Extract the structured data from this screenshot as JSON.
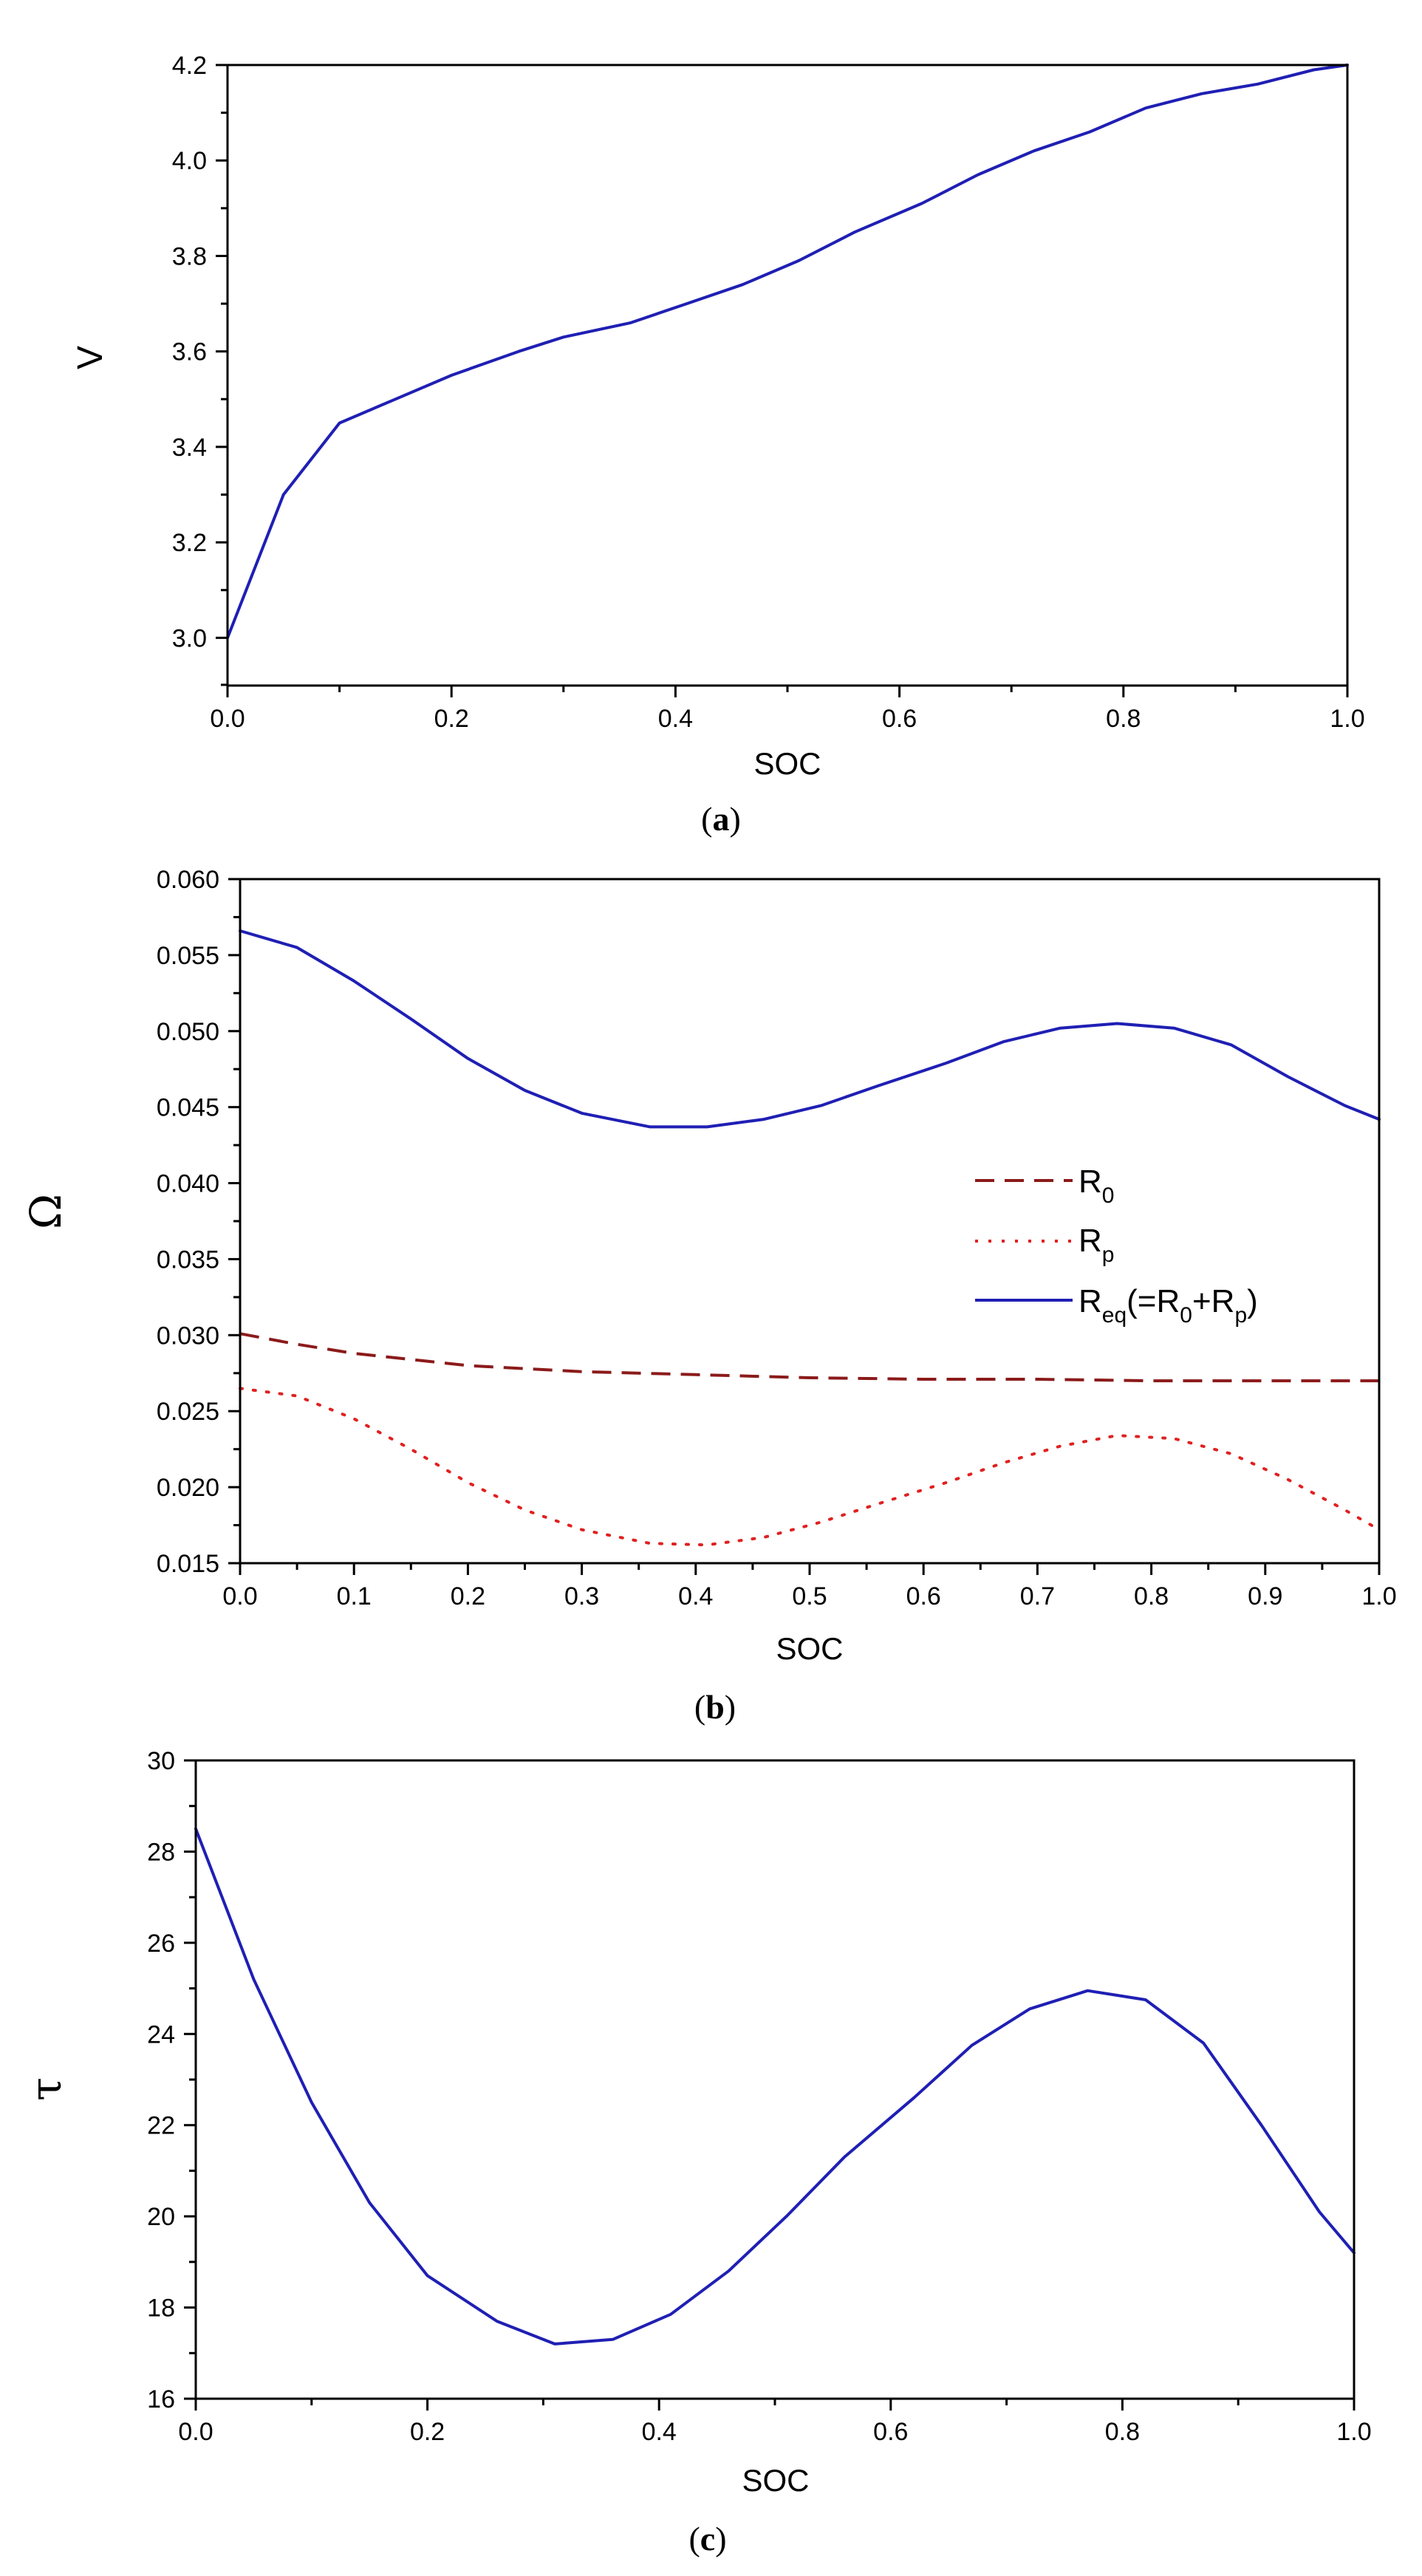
{
  "chart_data": [
    {
      "id": "a",
      "type": "line",
      "panel_label": "a",
      "xlabel": "SOC",
      "ylabel": "V",
      "xlim": [
        0,
        1
      ],
      "ylim": [
        2.9,
        4.2
      ],
      "xticks": [
        0,
        0.2,
        0.4,
        0.6,
        0.8,
        1
      ],
      "xtick_labels": [
        "0.0",
        "0.2",
        "0.4",
        "0.6",
        "0.8",
        "1.0"
      ],
      "yticks": [
        3.0,
        3.2,
        3.4,
        3.6,
        3.8,
        4.0,
        4.2
      ],
      "ytick_labels": [
        "3.0",
        "3.2",
        "3.4",
        "3.6",
        "3.8",
        "4.0",
        "4.2"
      ],
      "colors": {
        "line": "#1f1fb4"
      },
      "series": [
        {
          "name": "V",
          "color": "#1f1fb4",
          "dash": "solid",
          "x": [
            0,
            0.05,
            0.1,
            0.15,
            0.2,
            0.26,
            0.3,
            0.36,
            0.41,
            0.46,
            0.51,
            0.56,
            0.62,
            0.67,
            0.72,
            0.77,
            0.82,
            0.87,
            0.92,
            0.97,
            1.0
          ],
          "y": [
            3.0,
            3.3,
            3.45,
            3.5,
            3.55,
            3.6,
            3.63,
            3.66,
            3.7,
            3.74,
            3.79,
            3.85,
            3.91,
            3.97,
            4.02,
            4.06,
            4.11,
            4.14,
            4.16,
            4.19,
            4.2
          ]
        }
      ]
    },
    {
      "id": "b",
      "type": "line",
      "panel_label": "b",
      "xlabel": "SOC",
      "ylabel": "Ω",
      "xlim": [
        0,
        1
      ],
      "ylim": [
        0.015,
        0.06
      ],
      "xticks": [
        0,
        0.1,
        0.2,
        0.3,
        0.4,
        0.5,
        0.6,
        0.7,
        0.8,
        0.9,
        1
      ],
      "xtick_labels": [
        "0.0",
        "0.1",
        "0.2",
        "0.3",
        "0.4",
        "0.5",
        "0.6",
        "0.7",
        "0.8",
        "0.9",
        "1.0"
      ],
      "yticks": [
        0.015,
        0.02,
        0.025,
        0.03,
        0.035,
        0.04,
        0.045,
        0.05,
        0.055,
        0.06
      ],
      "ytick_labels": [
        "0.015",
        "0.020",
        "0.025",
        "0.030",
        "0.035",
        "0.040",
        "0.045",
        "0.050",
        "0.055",
        "0.060"
      ],
      "legend_position": "center-right",
      "legend": [
        {
          "label": "R",
          "sub": "0",
          "suffix": ""
        },
        {
          "label": "R",
          "sub": "p",
          "suffix": ""
        },
        {
          "label": "R",
          "sub": "eq",
          "suffix": "(=R",
          "sub2": "0",
          "suffix2": "+R",
          "sub3": "p",
          "suffix3": ")"
        }
      ],
      "series": [
        {
          "name": "R0",
          "color": "#8b1a1a",
          "dash": "dashed",
          "x": [
            0,
            0.05,
            0.1,
            0.2,
            0.3,
            0.4,
            0.5,
            0.6,
            0.7,
            0.8,
            0.9,
            1.0
          ],
          "y": [
            0.0301,
            0.0294,
            0.0288,
            0.028,
            0.0276,
            0.0274,
            0.0272,
            0.0271,
            0.0271,
            0.027,
            0.027,
            0.027
          ]
        },
        {
          "name": "Rp",
          "color": "#e02020",
          "dash": "dotted",
          "x": [
            0,
            0.05,
            0.1,
            0.15,
            0.2,
            0.25,
            0.3,
            0.36,
            0.41,
            0.46,
            0.51,
            0.56,
            0.62,
            0.67,
            0.72,
            0.77,
            0.82,
            0.87,
            0.92,
            0.97,
            1.0
          ],
          "y": [
            0.0265,
            0.026,
            0.0245,
            0.0225,
            0.0203,
            0.0185,
            0.0172,
            0.0163,
            0.0162,
            0.0167,
            0.0177,
            0.0189,
            0.0203,
            0.0216,
            0.0227,
            0.0234,
            0.0232,
            0.0222,
            0.0205,
            0.0185,
            0.0172
          ]
        },
        {
          "name": "Req",
          "color": "#1f1fb4",
          "dash": "solid",
          "x": [
            0,
            0.05,
            0.1,
            0.15,
            0.2,
            0.25,
            0.3,
            0.36,
            0.41,
            0.46,
            0.51,
            0.56,
            0.62,
            0.67,
            0.72,
            0.77,
            0.82,
            0.87,
            0.92,
            0.97,
            1.0
          ],
          "y": [
            0.0566,
            0.0555,
            0.0533,
            0.0508,
            0.0482,
            0.0461,
            0.0446,
            0.0437,
            0.0437,
            0.0442,
            0.0451,
            0.0464,
            0.0479,
            0.0493,
            0.0502,
            0.0505,
            0.0502,
            0.0491,
            0.047,
            0.0451,
            0.0442
          ]
        }
      ]
    },
    {
      "id": "c",
      "type": "line",
      "panel_label": "c",
      "xlabel": "SOC",
      "ylabel": "τ",
      "xlim": [
        0,
        1
      ],
      "ylim": [
        16,
        30
      ],
      "xticks": [
        0,
        0.2,
        0.4,
        0.6,
        0.8,
        1
      ],
      "xtick_labels": [
        "0.0",
        "0.2",
        "0.4",
        "0.6",
        "0.8",
        "1.0"
      ],
      "yticks": [
        16,
        18,
        20,
        22,
        24,
        26,
        28,
        30
      ],
      "ytick_labels": [
        "16",
        "18",
        "20",
        "22",
        "24",
        "26",
        "28",
        "30"
      ],
      "series": [
        {
          "name": "tau",
          "color": "#1f1fb4",
          "dash": "solid",
          "x": [
            0,
            0.05,
            0.1,
            0.15,
            0.2,
            0.26,
            0.31,
            0.36,
            0.41,
            0.46,
            0.51,
            0.56,
            0.62,
            0.67,
            0.72,
            0.77,
            0.82,
            0.87,
            0.92,
            0.97,
            1.0
          ],
          "y": [
            28.5,
            25.2,
            22.5,
            20.3,
            18.7,
            17.7,
            17.2,
            17.3,
            17.85,
            18.8,
            20.0,
            21.3,
            22.6,
            23.75,
            24.55,
            24.95,
            24.75,
            23.8,
            22.0,
            20.1,
            19.2
          ]
        }
      ]
    }
  ]
}
